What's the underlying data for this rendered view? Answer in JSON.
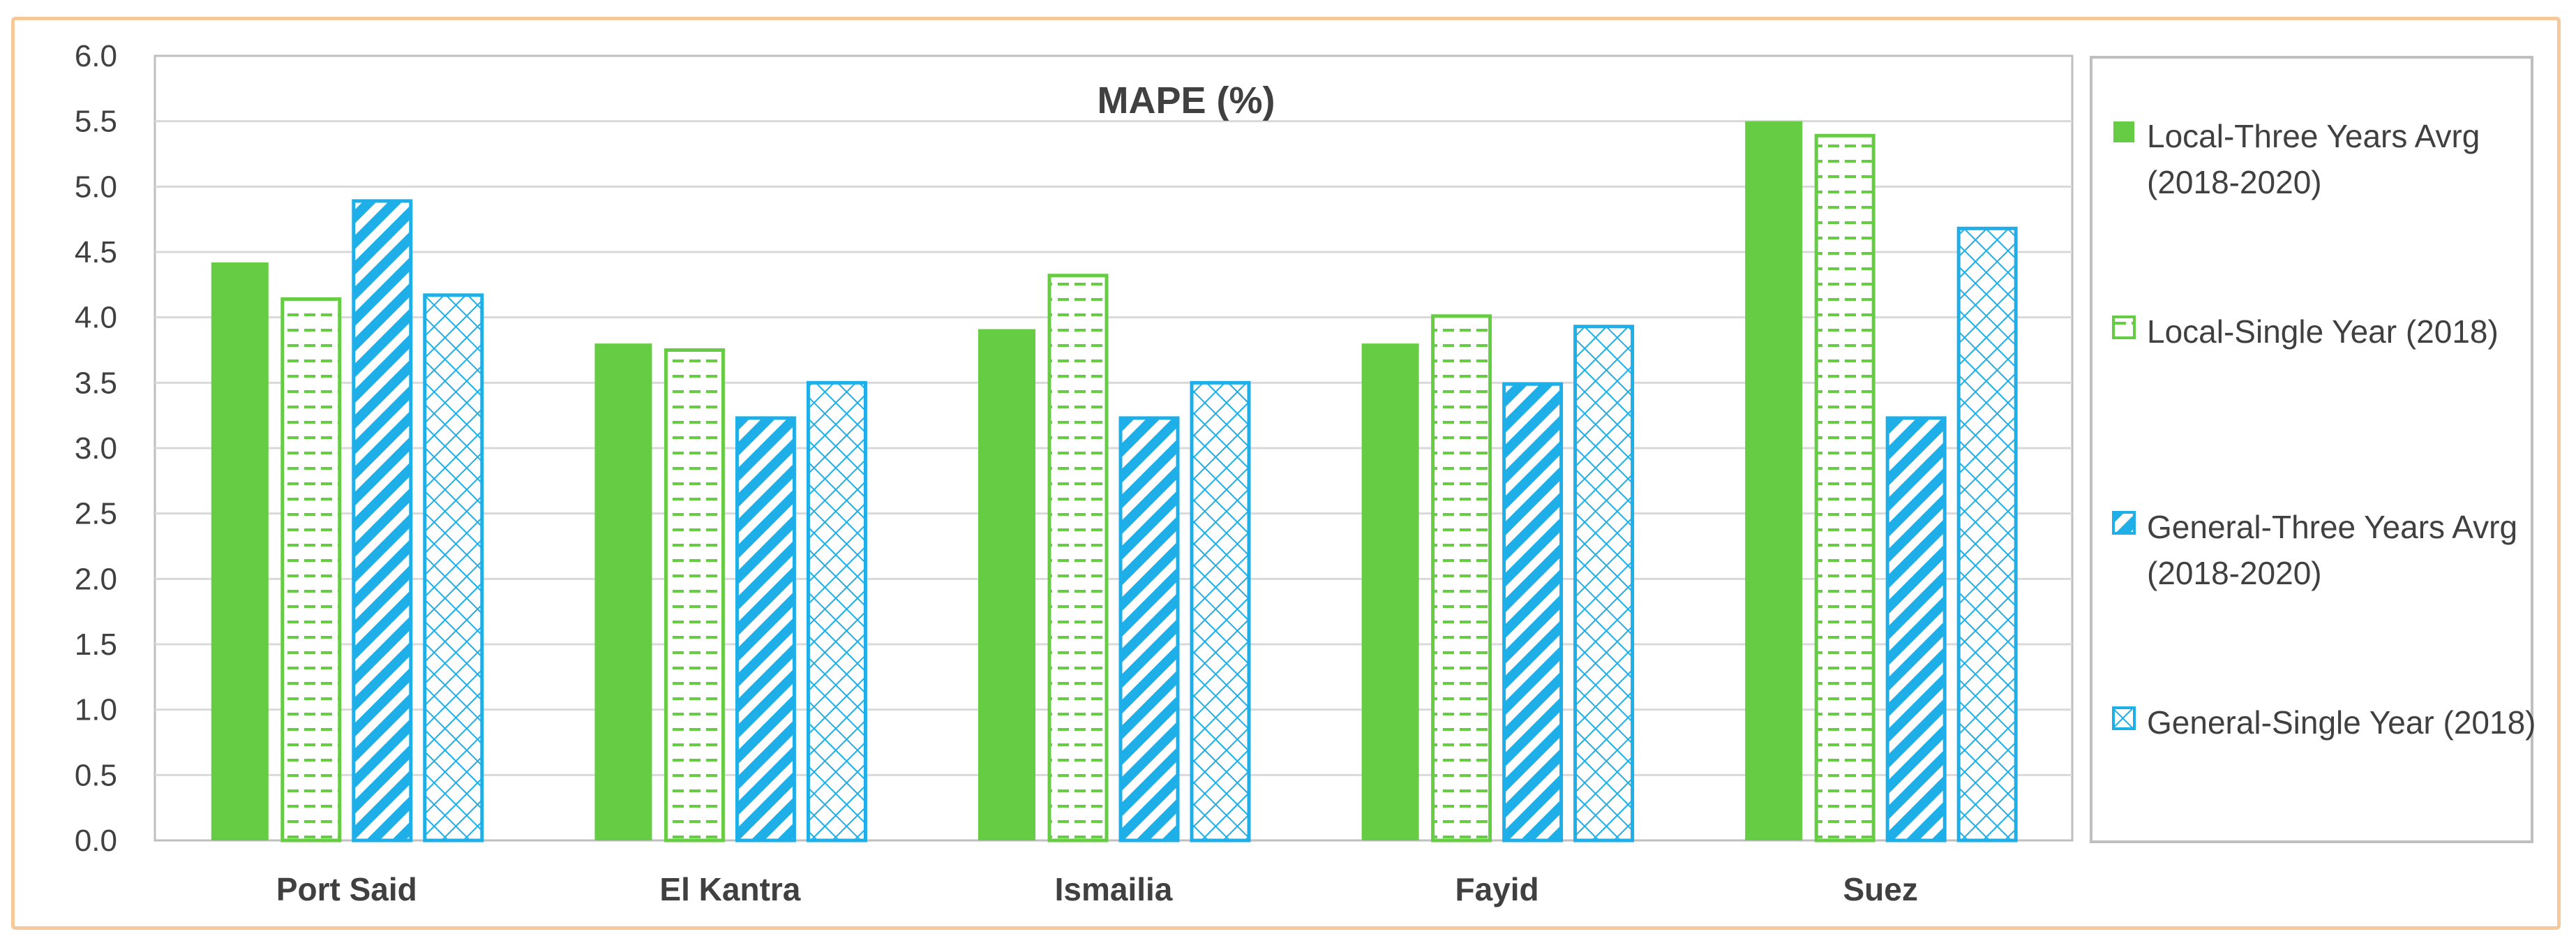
{
  "chart_data": {
    "type": "bar",
    "title": "MAPE (%)",
    "categories": [
      "Port Said",
      "El Kantra",
      "Ismailia",
      "Fayid",
      "Suez"
    ],
    "series": [
      {
        "name": "Local-Three Years Avrg (2018-2020)",
        "values": [
          4.42,
          3.8,
          3.91,
          3.8,
          5.5
        ],
        "color": "#66cc44",
        "pattern": "solid"
      },
      {
        "name": "Local-Single Year (2018)",
        "values": [
          4.14,
          3.75,
          4.32,
          4.01,
          5.39
        ],
        "color": "#66cc44",
        "pattern": "dashed-horizontal"
      },
      {
        "name": "General-Three Years Avrg (2018-2020)",
        "values": [
          4.89,
          3.23,
          3.23,
          3.49,
          3.23
        ],
        "color": "#1eaee8",
        "pattern": "diagonal-stripes"
      },
      {
        "name": "General-Single Year (2018)",
        "values": [
          4.17,
          3.5,
          3.5,
          3.93,
          4.68
        ],
        "color": "#1eaee8",
        "pattern": "crosshatch"
      }
    ],
    "ylim": [
      0,
      6
    ],
    "yticks": [
      "0.0",
      "0.5",
      "1.0",
      "1.5",
      "2.0",
      "2.5",
      "3.0",
      "3.5",
      "4.0",
      "4.5",
      "5.0",
      "5.5",
      "6.0"
    ],
    "grid": true,
    "legend_position": "right"
  }
}
